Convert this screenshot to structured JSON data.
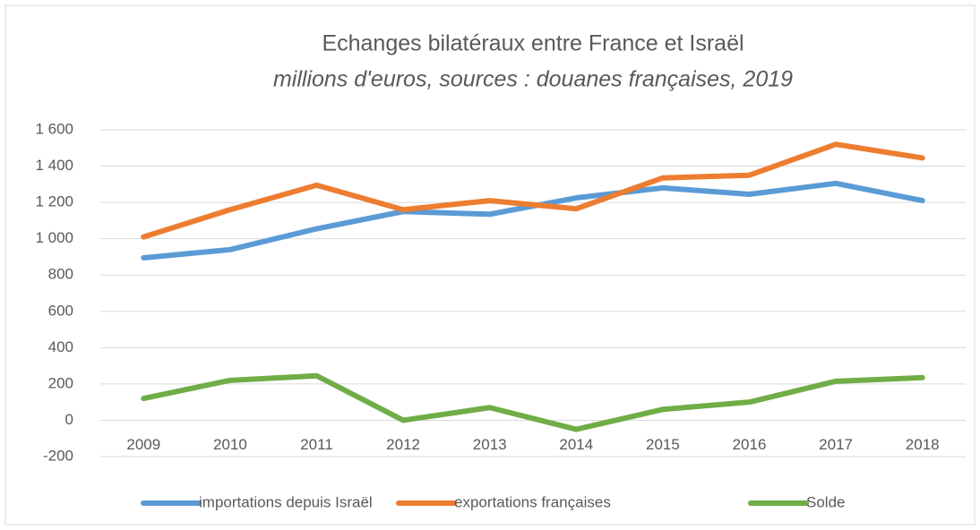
{
  "chart_data": {
    "type": "line",
    "title": "Echanges bilatéraux entre France et Israël",
    "subtitle": "millions d'euros, sources : douanes françaises, 2019",
    "categories": [
      "2009",
      "2010",
      "2011",
      "2012",
      "2013",
      "2014",
      "2015",
      "2016",
      "2017",
      "2018"
    ],
    "series": [
      {
        "name": "importations depuis Israël",
        "color": "#5b9bd5",
        "values": [
          895,
          940,
          1055,
          1150,
          1135,
          1225,
          1280,
          1245,
          1305,
          1210
        ]
      },
      {
        "name": "exportations françaises",
        "color": "#ed7d31",
        "values": [
          1010,
          1160,
          1295,
          1160,
          1210,
          1165,
          1335,
          1350,
          1520,
          1445
        ]
      },
      {
        "name": "Solde",
        "color": "#70ad47",
        "values": [
          120,
          220,
          245,
          0,
          70,
          -50,
          60,
          100,
          215,
          235
        ]
      }
    ],
    "ylim": [
      -200,
      1600
    ],
    "yticks": [
      -200,
      0,
      200,
      400,
      600,
      800,
      {
        "value": 1000,
        "label": "1 000"
      },
      {
        "value": 1200,
        "label": "1 200"
      },
      {
        "value": 1400,
        "label": "1 400"
      },
      {
        "value": 1600,
        "label": "1 600"
      }
    ],
    "grid": true,
    "legend": "bottom"
  }
}
